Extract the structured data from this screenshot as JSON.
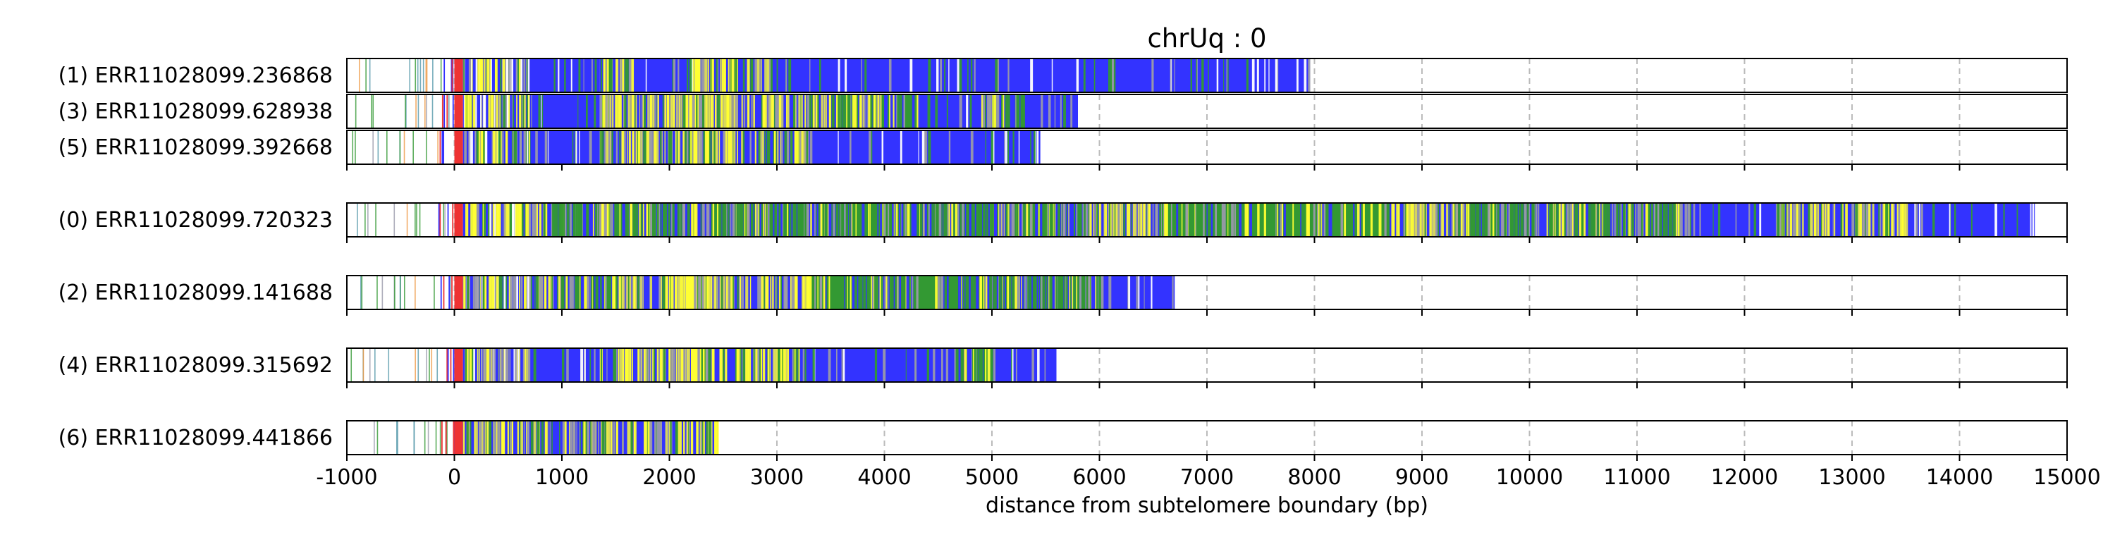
{
  "chart_data": {
    "type": "bar",
    "title": "chrUq : 0",
    "xlabel": "distance from subtelomere boundary (bp)",
    "ylabel": "",
    "xlim": [
      -1000,
      15000
    ],
    "xticks": [
      -1000,
      0,
      1000,
      2000,
      3000,
      4000,
      5000,
      6000,
      7000,
      8000,
      9000,
      10000,
      11000,
      12000,
      13000,
      14000,
      15000
    ],
    "grid": "vertical dashed",
    "colors": {
      "blue": "#3333ff",
      "yellow": "#ffff33",
      "green": "#339933",
      "gray": "#9999aa",
      "red": "#ee3333",
      "teal": "#5599aa",
      "orange": "#ee9944",
      "frame": "#000000",
      "grid": "#bbbbbb"
    },
    "groups": [
      {
        "reads": [
          {
            "label": "(1) ERR11028099.236868",
            "end": 7950,
            "profile": [
              [
                -1000,
                "sparse"
              ],
              [
                0,
                "red"
              ],
              [
                80,
                "mix"
              ],
              [
                700,
                "blue"
              ],
              [
                1350,
                "mixy"
              ],
              [
                1650,
                "blue"
              ],
              [
                2200,
                "yellow"
              ],
              [
                2300,
                "mixy"
              ],
              [
                2950,
                "blue"
              ]
            ]
          },
          {
            "label": "(3) ERR11028099.628938",
            "end": 5800,
            "profile": [
              [
                -1000,
                "sparse"
              ],
              [
                0,
                "red"
              ],
              [
                80,
                "mix"
              ],
              [
                700,
                "blue"
              ],
              [
                1350,
                "mixy"
              ],
              [
                2150,
                "yellow"
              ],
              [
                2250,
                "mixy"
              ],
              [
                3700,
                "mixg"
              ],
              [
                4300,
                "blue"
              ],
              [
                4900,
                "mixg"
              ],
              [
                5300,
                "blue"
              ]
            ]
          },
          {
            "label": "(5) ERR11028099.392668",
            "end": 5450,
            "profile": [
              [
                -1000,
                "sparse"
              ],
              [
                0,
                "red"
              ],
              [
                80,
                "mix"
              ],
              [
                700,
                "blue"
              ],
              [
                1350,
                "mixy"
              ],
              [
                2200,
                "yellow"
              ],
              [
                2300,
                "mixy"
              ],
              [
                3300,
                "blue"
              ]
            ]
          }
        ]
      },
      {
        "reads": [
          {
            "label": "(0) ERR11028099.720323",
            "end": 14700,
            "profile": [
              [
                -1000,
                "sparse"
              ],
              [
                0,
                "red"
              ],
              [
                80,
                "mix"
              ],
              [
                750,
                "mixg"
              ],
              [
                1350,
                "yellow"
              ],
              [
                1450,
                "mixg"
              ],
              [
                3700,
                "green"
              ],
              [
                4100,
                "mixg"
              ],
              [
                5900,
                "mixy"
              ],
              [
                6500,
                "green"
              ],
              [
                8700,
                "mixy"
              ],
              [
                9400,
                "mixg"
              ],
              [
                11500,
                "blue"
              ],
              [
                12300,
                "mixy"
              ],
              [
                13500,
                "blue"
              ]
            ]
          }
        ]
      },
      {
        "reads": [
          {
            "label": "(2) ERR11028099.141688",
            "end": 6700,
            "profile": [
              [
                -1000,
                "sparse"
              ],
              [
                0,
                "red"
              ],
              [
                80,
                "mix"
              ],
              [
                900,
                "mixg"
              ],
              [
                1550,
                "mixy"
              ],
              [
                2150,
                "yellow"
              ],
              [
                2300,
                "mixy"
              ],
              [
                3300,
                "green"
              ],
              [
                3700,
                "mixg"
              ],
              [
                4100,
                "green"
              ],
              [
                4700,
                "mixg"
              ],
              [
                6100,
                "blue"
              ]
            ]
          }
        ]
      },
      {
        "reads": [
          {
            "label": "(4) ERR11028099.315692",
            "end": 5600,
            "profile": [
              [
                -1000,
                "sparse"
              ],
              [
                0,
                "red"
              ],
              [
                80,
                "mix"
              ],
              [
                700,
                "blue"
              ],
              [
                1350,
                "mixy"
              ],
              [
                2200,
                "yellow"
              ],
              [
                2350,
                "mixy"
              ],
              [
                3200,
                "blue"
              ],
              [
                4650,
                "mixg"
              ],
              [
                5000,
                "blue"
              ]
            ]
          }
        ]
      },
      {
        "reads": [
          {
            "label": "(6) ERR11028099.441866",
            "end": 2450,
            "profile": [
              [
                -1000,
                "sparse"
              ],
              [
                0,
                "red"
              ],
              [
                80,
                "mixy"
              ],
              [
                850,
                "mixb"
              ],
              [
                1200,
                "mixy"
              ]
            ]
          }
        ]
      }
    ]
  }
}
